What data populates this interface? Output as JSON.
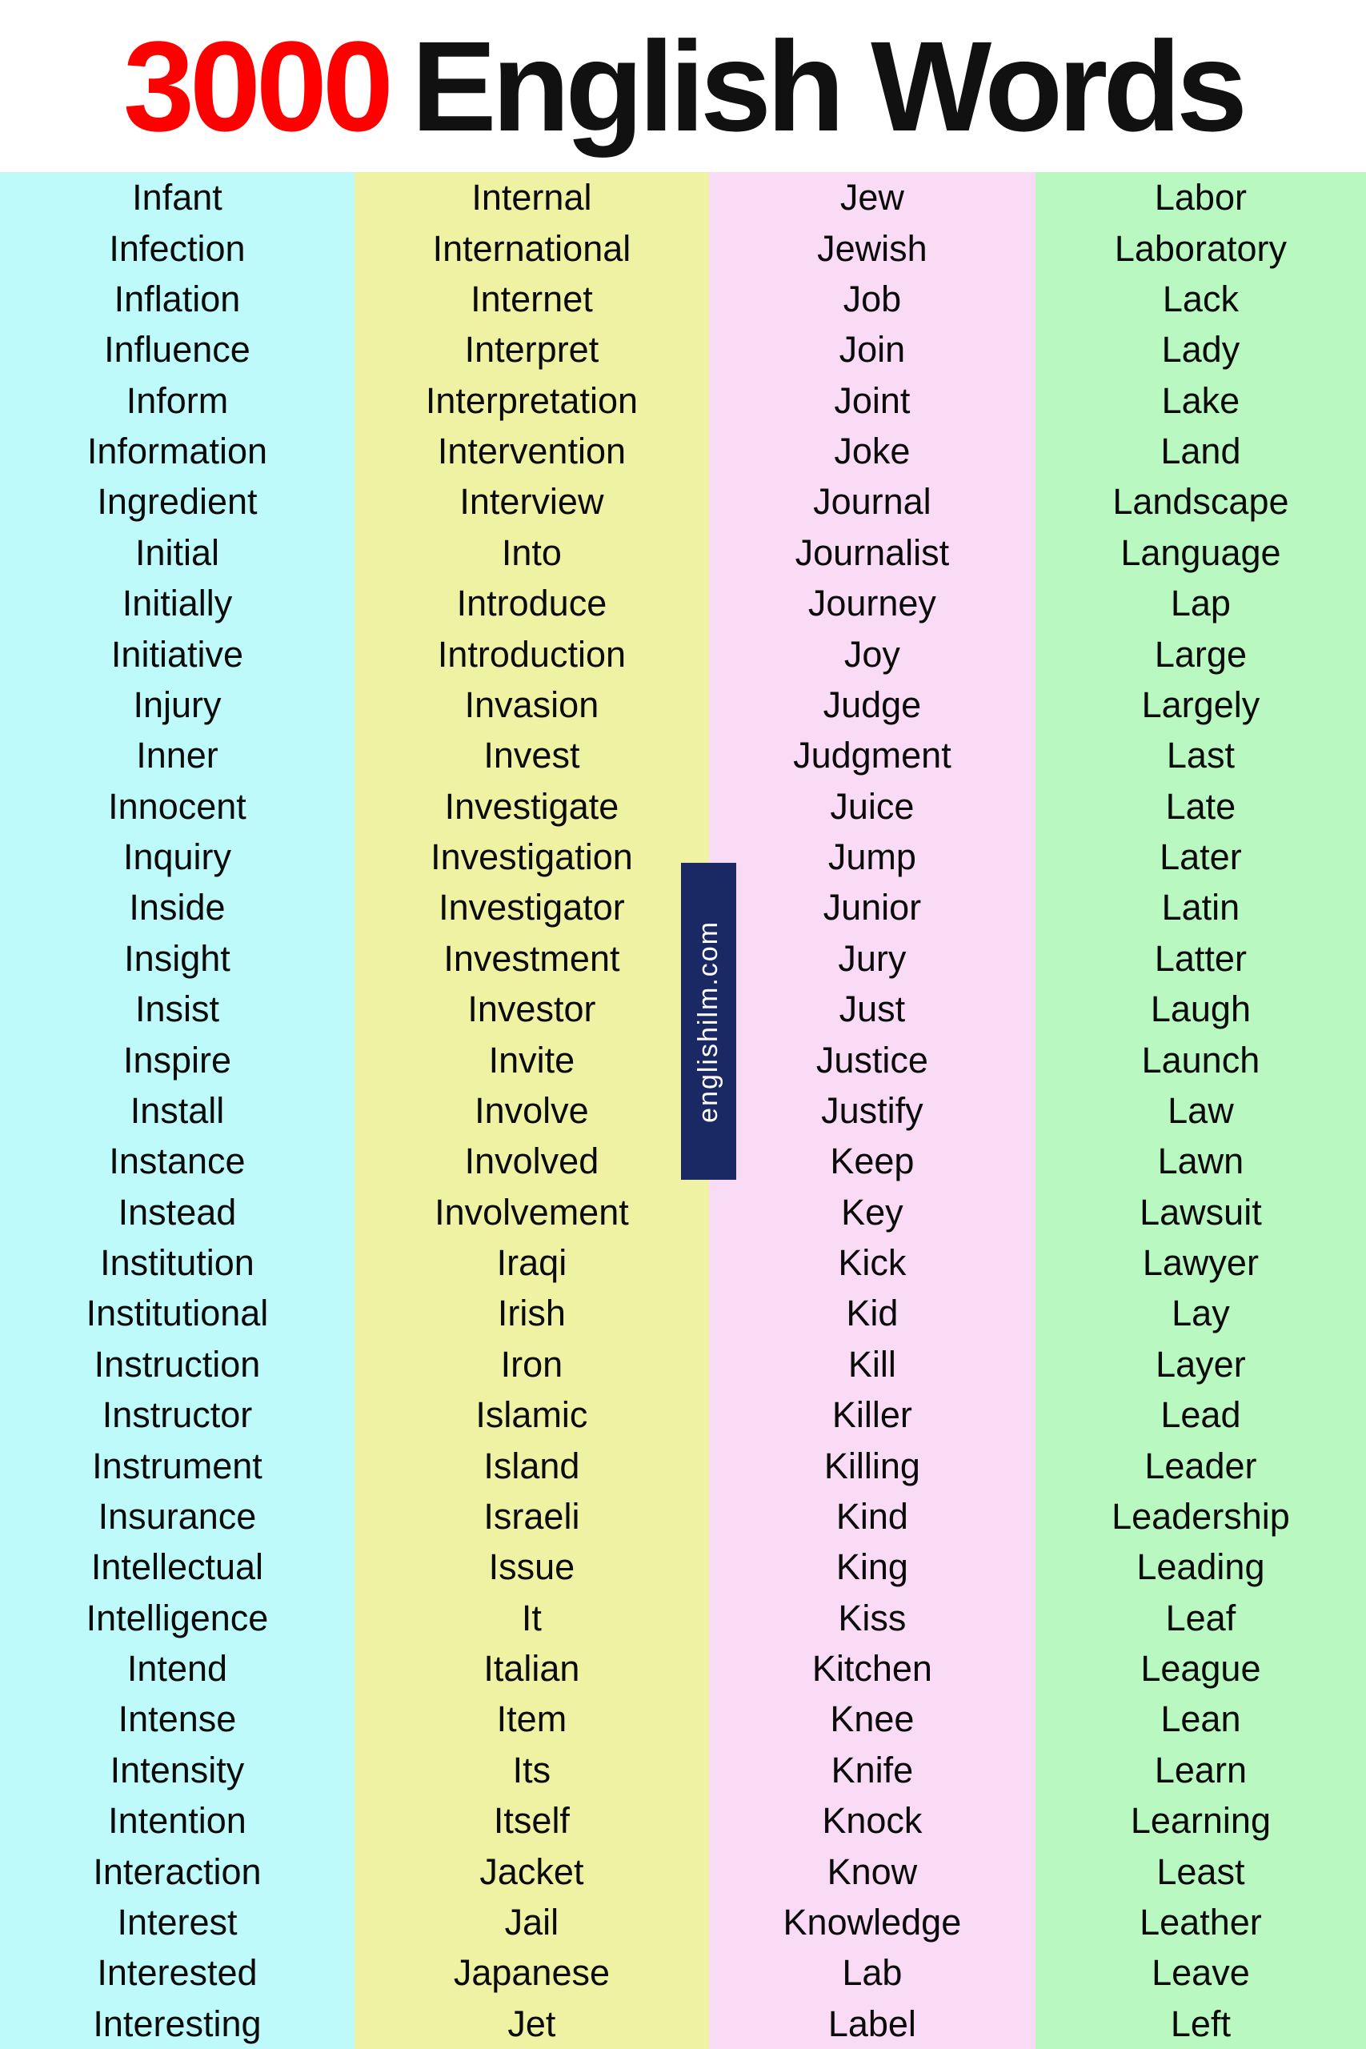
{
  "title": {
    "number": "3000",
    "text": "English Words"
  },
  "watermark": "englishilm.com",
  "colors": {
    "title_number": "#fe0000",
    "title_text": "#111111",
    "watermark_bg": "#1a2864",
    "watermark_text": "#ffffff",
    "column_backgrounds": [
      "#befafa",
      "#f0f2a3",
      "#fadbf5",
      "#b9f8c1"
    ]
  },
  "columns": [
    {
      "bg": "#befafa",
      "words": [
        "Infant",
        "Infection",
        "Inflation",
        "Influence",
        "Inform",
        "Information",
        "Ingredient",
        "Initial",
        "Initially",
        "Initiative",
        "Injury",
        "Inner",
        "Innocent",
        "Inquiry",
        "Inside",
        "Insight",
        "Insist",
        "Inspire",
        "Install",
        "Instance",
        "Instead",
        "Institution",
        "Institutional",
        "Instruction",
        "Instructor",
        "Instrument",
        "Insurance",
        "Intellectual",
        "Intelligence",
        "Intend",
        "Intense",
        "Intensity",
        "Intention",
        "Interaction",
        "Interest",
        "Interested",
        "Interesting"
      ]
    },
    {
      "bg": "#f0f2a3",
      "words": [
        "Internal",
        "International",
        "Internet",
        "Interpret",
        "Interpretation",
        "Intervention",
        "Interview",
        "Into",
        "Introduce",
        "Introduction",
        "Invasion",
        "Invest",
        "Investigate",
        "Investigation",
        "Investigator",
        "Investment",
        "Investor",
        "Invite",
        "Involve",
        "Involved",
        "Involvement",
        "Iraqi",
        "Irish",
        "Iron",
        "Islamic",
        "Island",
        "Israeli",
        "Issue",
        "It",
        "Italian",
        "Item",
        "Its",
        "Itself",
        "Jacket",
        "Jail",
        "Japanese",
        "Jet"
      ]
    },
    {
      "bg": "#fadbf5",
      "words": [
        "Jew",
        "Jewish",
        "Job",
        "Join",
        "Joint",
        "Joke",
        "Journal",
        "Journalist",
        "Journey",
        "Joy",
        "Judge",
        "Judgment",
        "Juice",
        "Jump",
        "Junior",
        "Jury",
        "Just",
        "Justice",
        "Justify",
        "Keep",
        "Key",
        "Kick",
        "Kid",
        "Kill",
        "Killer",
        "Killing",
        "Kind",
        "King",
        "Kiss",
        "Kitchen",
        "Knee",
        "Knife",
        "Knock",
        "Know",
        "Knowledge",
        "Lab",
        "Label"
      ]
    },
    {
      "bg": "#b9f8c1",
      "words": [
        "Labor",
        "Laboratory",
        "Lack",
        "Lady",
        "Lake",
        "Land",
        "Landscape",
        "Language",
        "Lap",
        "Large",
        "Largely",
        "Last",
        "Late",
        "Later",
        "Latin",
        "Latter",
        "Laugh",
        "Launch",
        "Law",
        "Lawn",
        "Lawsuit",
        "Lawyer",
        "Lay",
        "Layer",
        "Lead",
        "Leader",
        "Leadership",
        "Leading",
        "Leaf",
        "League",
        "Lean",
        "Learn",
        "Learning",
        "Least",
        "Leather",
        "Leave",
        "Left"
      ]
    }
  ]
}
